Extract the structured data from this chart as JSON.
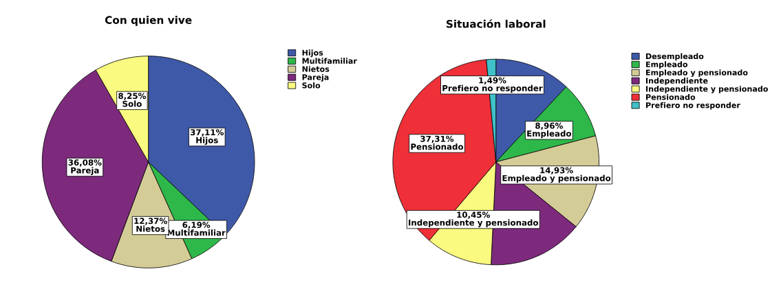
{
  "chart_data": [
    {
      "type": "pie",
      "title": "Con quien vive",
      "categories": [
        "Hijos",
        "Multifamiliar",
        "Nietos",
        "Pareja",
        "Solo"
      ],
      "values": [
        37.11,
        6.19,
        12.37,
        36.08,
        8.25
      ],
      "colors": [
        "#3f59a9",
        "#2eb84a",
        "#d4cc96",
        "#7d2a7d",
        "#fafa80"
      ],
      "value_labels": [
        "37,11%",
        "6,19%",
        "12,37%",
        "36,08%",
        "8,25%"
      ],
      "legend": "top right"
    },
    {
      "type": "pie",
      "title": "Situación laboral",
      "categories": [
        "Desempleado",
        "Empleado",
        "Empleado y pensionado",
        "Independiente",
        "Independiente y pensionado",
        "Pensionado",
        "Prefiero no responder"
      ],
      "values": [
        11.94,
        8.96,
        14.93,
        14.93,
        10.45,
        37.31,
        1.49
      ],
      "colors": [
        "#3f59a9",
        "#2eb84a",
        "#d4cc96",
        "#7d2a7d",
        "#fafa80",
        "#ef3038",
        "#40c0c8"
      ],
      "value_labels": [
        null,
        "8,96%",
        "14,93%",
        null,
        "10,45%",
        "37,31%",
        "1,49%"
      ],
      "legend": "top right"
    }
  ]
}
